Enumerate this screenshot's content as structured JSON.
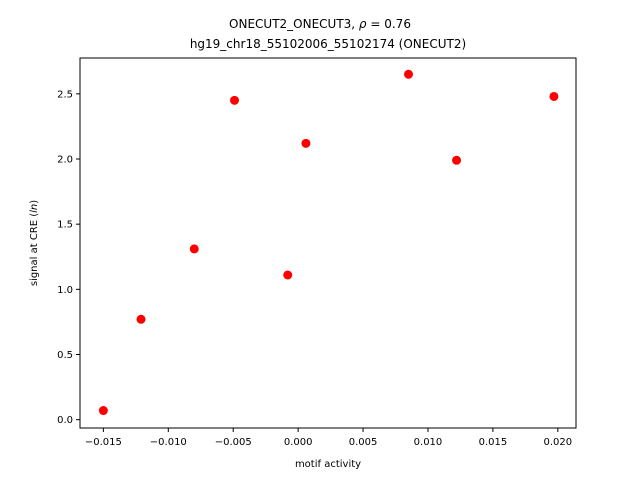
{
  "chart_data": {
    "type": "scatter",
    "title_line1_prefix": "ONECUT2_ONECUT3, ",
    "title_rho_symbol": "ρ",
    "title_rho_rest": " = 0.76",
    "title_line2": "hg19_chr18_55102006_55102174 (ONECUT2)",
    "xlabel": "motif activity",
    "ylabel_prefix": "signal at CRE (",
    "ylabel_italic": "ln",
    "ylabel_suffix": ")",
    "xlim": [
      -0.0168,
      0.0214
    ],
    "ylim": [
      -0.064,
      2.775
    ],
    "xticks": [
      -0.015,
      -0.01,
      -0.005,
      0.0,
      0.005,
      0.01,
      0.015,
      0.02
    ],
    "xtick_labels": [
      "−0.015",
      "−0.010",
      "−0.005",
      "0.000",
      "0.005",
      "0.010",
      "0.015",
      "0.020"
    ],
    "yticks": [
      0.0,
      0.5,
      1.0,
      1.5,
      2.0,
      2.5
    ],
    "ytick_labels": [
      "0.0",
      "0.5",
      "1.0",
      "1.5",
      "2.0",
      "2.5"
    ],
    "marker_color": "#ff0000",
    "points": [
      {
        "x": -0.015,
        "y": 0.07
      },
      {
        "x": -0.0121,
        "y": 0.77
      },
      {
        "x": -0.008,
        "y": 1.31
      },
      {
        "x": -0.0049,
        "y": 2.45
      },
      {
        "x": -0.0008,
        "y": 1.11
      },
      {
        "x": 0.0006,
        "y": 2.12
      },
      {
        "x": 0.0085,
        "y": 2.65
      },
      {
        "x": 0.0122,
        "y": 1.99
      },
      {
        "x": 0.0197,
        "y": 2.48
      }
    ]
  }
}
